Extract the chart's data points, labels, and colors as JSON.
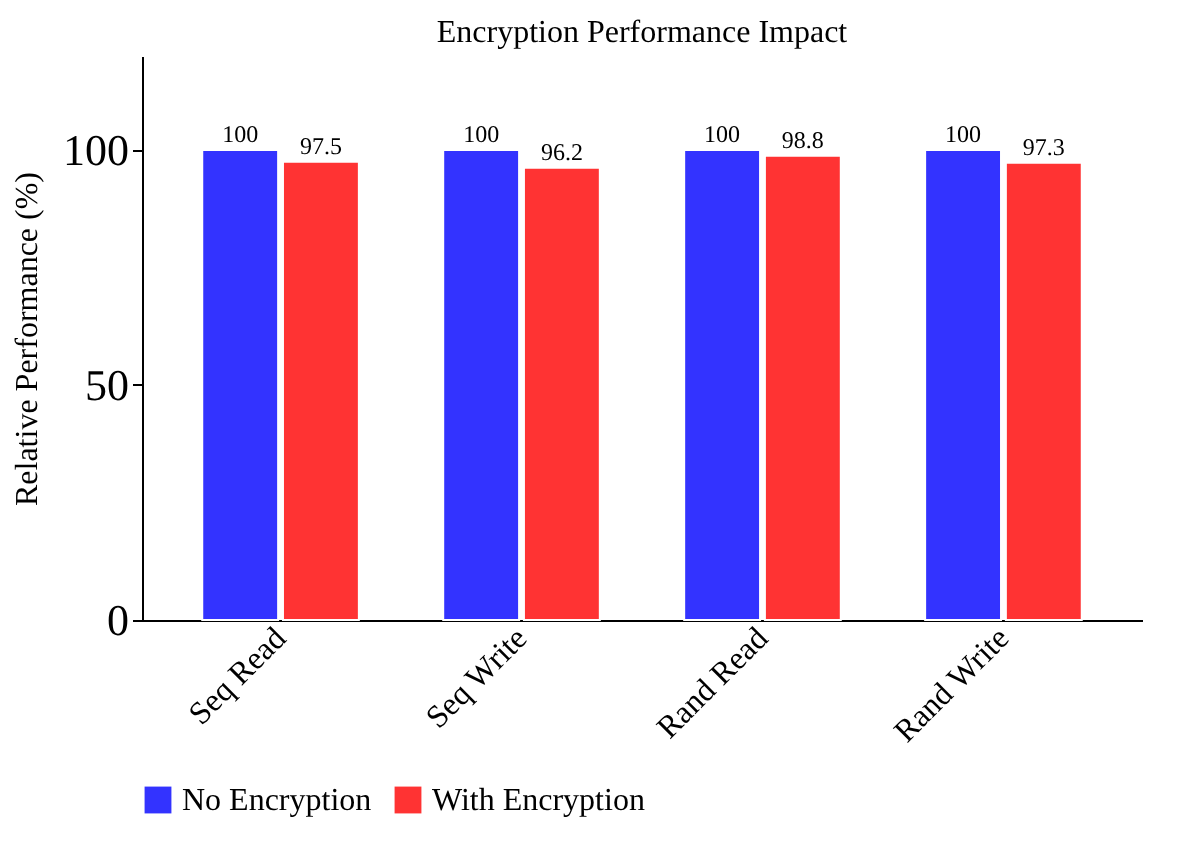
{
  "chart_data": {
    "type": "bar",
    "title": "Encryption Performance Impact",
    "ylabel": "Relative Performance (%)",
    "categories": [
      "Seq Read",
      "Seq Write",
      "Rand Read",
      "Rand Write"
    ],
    "series": [
      {
        "name": "No Encryption",
        "color": "#3333ff",
        "values": [
          100,
          100,
          100,
          100
        ]
      },
      {
        "name": "With Encryption",
        "color": "#ff3333",
        "values": [
          97.5,
          96.2,
          98.8,
          97.3
        ]
      }
    ],
    "ylim": [
      0,
      120
    ],
    "yticks": [
      0,
      50,
      100
    ],
    "grid": false,
    "legend": "bottom",
    "data_labels": true
  }
}
